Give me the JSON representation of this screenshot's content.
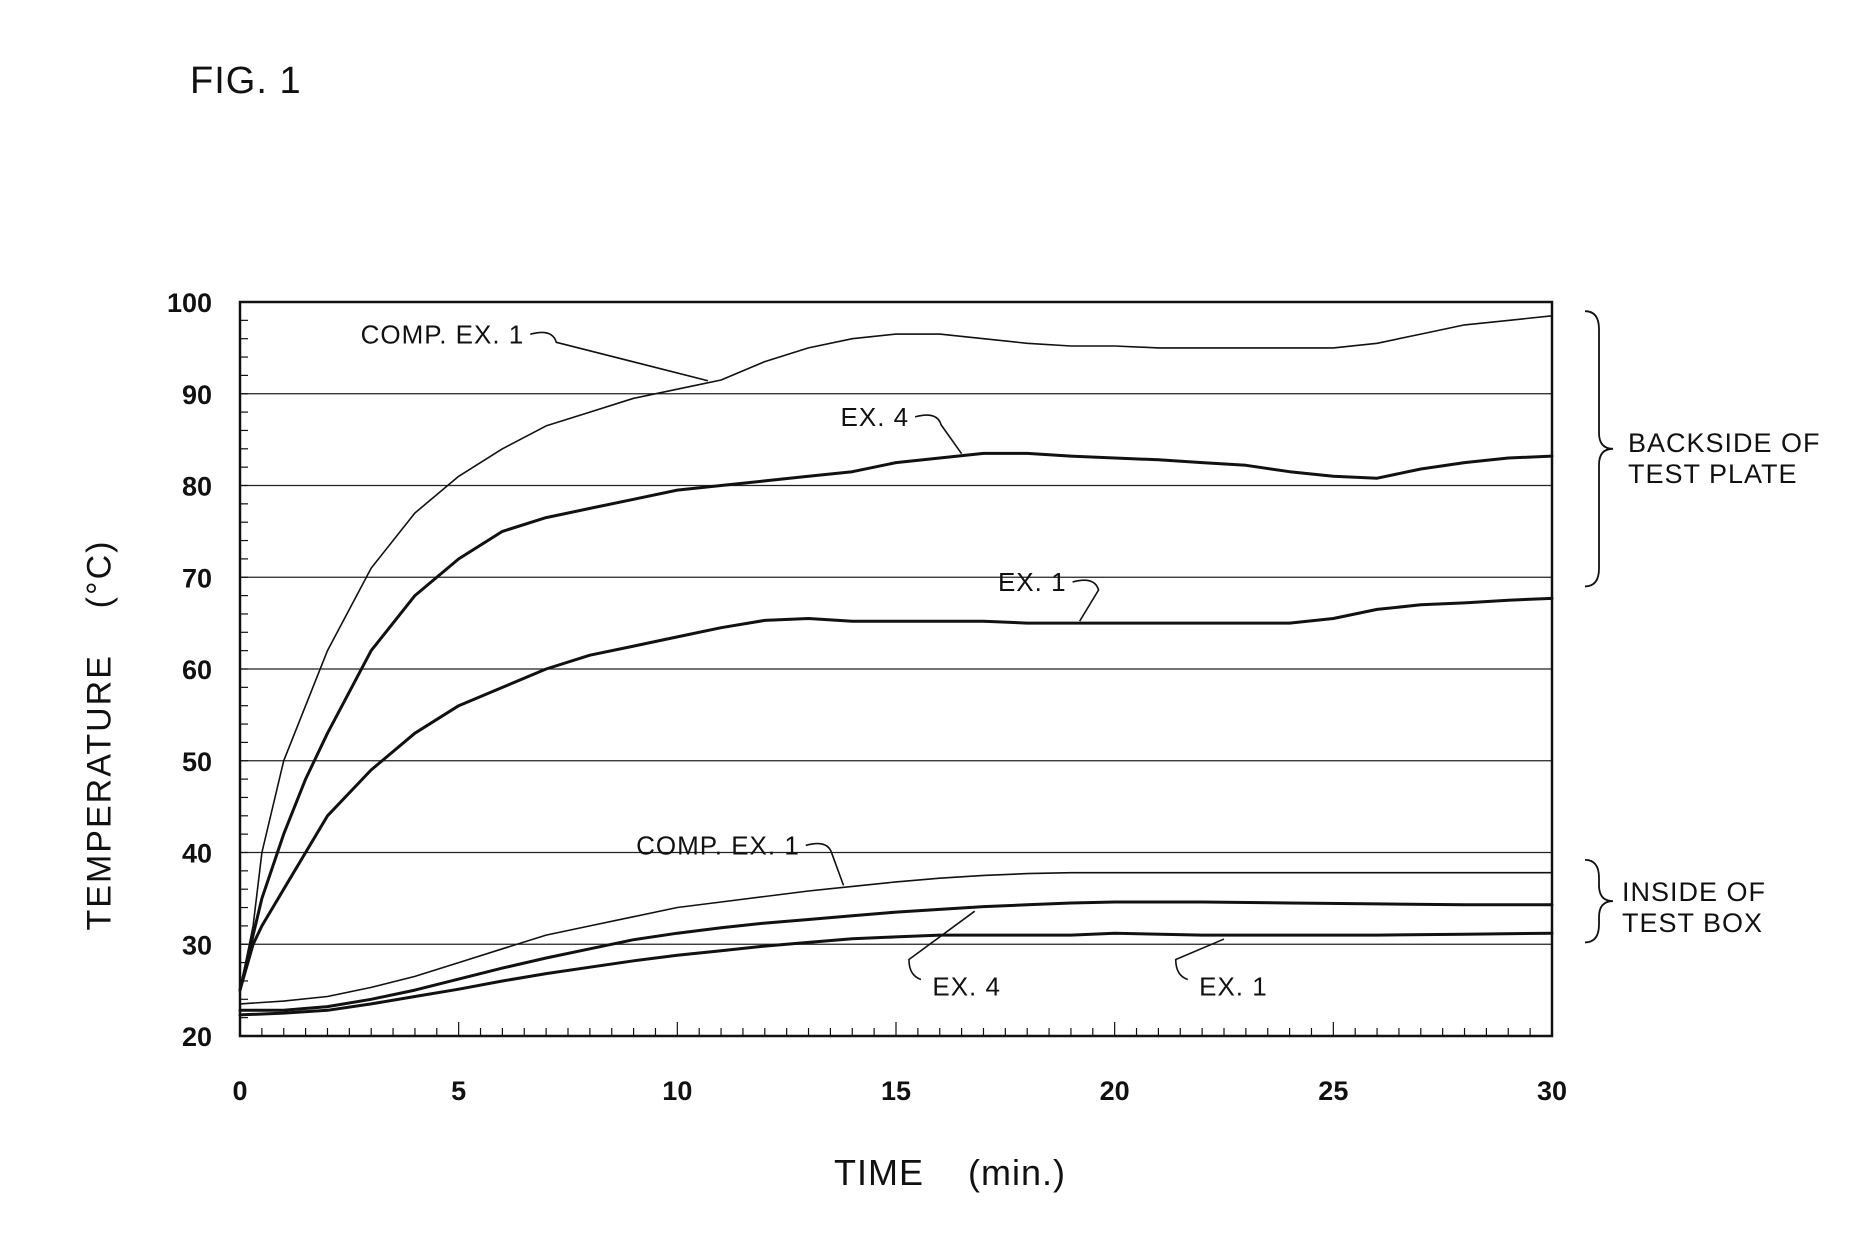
{
  "figure": {
    "label": "FIG. 1"
  },
  "chart_data": {
    "type": "line",
    "title": "",
    "xlabel": "TIME    (min.)",
    "ylabel": "TEMPERATURE    (°C)",
    "xlim": [
      0,
      30
    ],
    "ylim": [
      20,
      100
    ],
    "xticks": [
      0,
      5,
      10,
      15,
      20,
      25,
      30
    ],
    "yticks": [
      20,
      30,
      40,
      50,
      60,
      70,
      80,
      90,
      100
    ],
    "grid": "horizontal",
    "groups": [
      {
        "name": "BACKSIDE OF TEST PLATE",
        "lines": [
          "BACKSIDE OF",
          "TEST PLATE"
        ]
      },
      {
        "name": "INSIDE OF TEST BOX",
        "lines": [
          "INSIDE OF",
          "TEST BOX"
        ]
      }
    ],
    "series": [
      {
        "name": "COMP. EX. 1",
        "group": "BACKSIDE OF TEST PLATE",
        "weight": "thin",
        "x": [
          0,
          0.3,
          0.5,
          1,
          1.5,
          2,
          3,
          4,
          5,
          6,
          7,
          8,
          9,
          10,
          11,
          12,
          13,
          14,
          15,
          16,
          17,
          18,
          19,
          20,
          21,
          22,
          23,
          24,
          25,
          26,
          27,
          28,
          29,
          30
        ],
        "y": [
          25,
          32,
          40,
          50,
          56,
          62,
          71,
          77,
          81,
          84,
          86.5,
          88,
          89.5,
          90.5,
          91.5,
          93.5,
          95,
          96,
          96.5,
          96.5,
          96,
          95.5,
          95.2,
          95.2,
          95,
          95,
          95,
          95,
          95,
          95.5,
          96.5,
          97.5,
          98,
          98.5
        ]
      },
      {
        "name": "EX. 4",
        "group": "BACKSIDE OF TEST PLATE",
        "weight": "thick",
        "x": [
          0,
          0.3,
          0.5,
          1,
          1.5,
          2,
          3,
          4,
          5,
          6,
          7,
          8,
          9,
          10,
          11,
          12,
          13,
          14,
          15,
          16,
          17,
          18,
          19,
          20,
          21,
          22,
          23,
          24,
          25,
          26,
          27,
          28,
          29,
          30
        ],
        "y": [
          25,
          31,
          35,
          42,
          48,
          53,
          62,
          68,
          72,
          75,
          76.5,
          77.5,
          78.5,
          79.5,
          80,
          80.5,
          81,
          81.5,
          82.5,
          83,
          83.5,
          83.5,
          83.2,
          83,
          82.8,
          82.5,
          82.2,
          81.5,
          81,
          80.8,
          81.8,
          82.5,
          83,
          83.2
        ]
      },
      {
        "name": "EX. 1",
        "group": "BACKSIDE OF TEST PLATE",
        "weight": "thick",
        "x": [
          0,
          0.3,
          0.5,
          1,
          1.5,
          2,
          3,
          4,
          5,
          6,
          7,
          8,
          9,
          10,
          11,
          12,
          13,
          14,
          15,
          16,
          17,
          18,
          19,
          20,
          21,
          22,
          23,
          24,
          25,
          26,
          27,
          28,
          29,
          30
        ],
        "y": [
          25,
          30,
          32,
          36,
          40,
          44,
          49,
          53,
          56,
          58,
          60,
          61.5,
          62.5,
          63.5,
          64.5,
          65.3,
          65.5,
          65.2,
          65.2,
          65.2,
          65.2,
          65,
          65,
          65,
          65,
          65,
          65,
          65,
          65.5,
          66.5,
          67,
          67.2,
          67.5,
          67.7
        ]
      },
      {
        "name": "COMP. EX. 1",
        "group": "INSIDE OF TEST BOX",
        "weight": "thin",
        "x": [
          0,
          1,
          2,
          3,
          4,
          5,
          6,
          7,
          8,
          9,
          10,
          11,
          12,
          13,
          14,
          15,
          16,
          17,
          18,
          19,
          20,
          22,
          24,
          26,
          28,
          30
        ],
        "y": [
          23.5,
          23.8,
          24.3,
          25.3,
          26.5,
          28,
          29.5,
          31,
          32,
          33,
          34,
          34.6,
          35.2,
          35.8,
          36.3,
          36.8,
          37.2,
          37.5,
          37.7,
          37.8,
          37.8,
          37.8,
          37.8,
          37.8,
          37.8,
          37.8
        ]
      },
      {
        "name": "EX. 4",
        "group": "INSIDE OF TEST BOX",
        "weight": "thick",
        "x": [
          0,
          1,
          2,
          3,
          4,
          5,
          6,
          7,
          8,
          9,
          10,
          11,
          12,
          13,
          14,
          15,
          16,
          17,
          18,
          19,
          20,
          22,
          24,
          26,
          28,
          30
        ],
        "y": [
          22.8,
          22.8,
          23.2,
          24,
          25,
          26.2,
          27.4,
          28.5,
          29.5,
          30.5,
          31.2,
          31.8,
          32.3,
          32.7,
          33.1,
          33.5,
          33.8,
          34.1,
          34.3,
          34.5,
          34.6,
          34.6,
          34.5,
          34.4,
          34.3,
          34.3
        ]
      },
      {
        "name": "EX. 1",
        "group": "INSIDE OF TEST BOX",
        "weight": "thick",
        "x": [
          0,
          1,
          2,
          3,
          4,
          5,
          6,
          7,
          8,
          9,
          10,
          11,
          12,
          13,
          14,
          15,
          16,
          17,
          18,
          19,
          20,
          22,
          24,
          26,
          28,
          30
        ],
        "y": [
          22.3,
          22.5,
          22.8,
          23.5,
          24.3,
          25.1,
          26,
          26.8,
          27.5,
          28.2,
          28.8,
          29.3,
          29.8,
          30.2,
          30.6,
          30.8,
          31,
          31,
          31,
          31,
          31.2,
          31,
          31,
          31,
          31.1,
          31.2
        ]
      }
    ],
    "annotations": [
      {
        "text": "COMP. EX. 1",
        "series": 0,
        "at_x": 10.7,
        "tx": 6.5,
        "ty": 95.5
      },
      {
        "text": "EX. 4",
        "series": 1,
        "at_x": 16.5,
        "tx": 15.3,
        "ty": 86.5
      },
      {
        "text": "EX. 1",
        "series": 2,
        "at_x": 19.2,
        "tx": 18.9,
        "ty": 68.5
      },
      {
        "text": "COMP. EX. 1",
        "series": 3,
        "at_x": 13.8,
        "tx": 12.8,
        "ty": 39.8
      },
      {
        "text": "EX. 4",
        "series": 4,
        "at_x": 16.8,
        "tx": 17.4,
        "ty": 25.5
      },
      {
        "text": "EX. 1",
        "series": 5,
        "at_x": 22.5,
        "tx": 23.5,
        "ty": 25.5
      }
    ]
  }
}
